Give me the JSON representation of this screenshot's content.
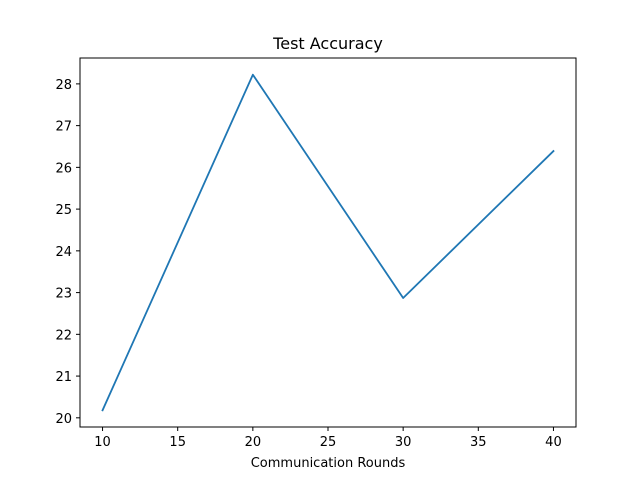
{
  "chart_data": {
    "type": "line",
    "title": "Test Accuracy",
    "xlabel": "Communication Rounds",
    "ylabel": "",
    "x": [
      10,
      20,
      30,
      40
    ],
    "series": [
      {
        "values": [
          20.18,
          28.22,
          22.87,
          26.39
        ],
        "color": "#1f77b4"
      }
    ],
    "xlim": [
      8.5,
      41.5
    ],
    "ylim": [
      19.78,
      28.62
    ],
    "xticks": [
      10,
      15,
      20,
      25,
      30,
      35,
      40
    ],
    "yticks": [
      20,
      21,
      22,
      23,
      24,
      25,
      26,
      27,
      28
    ],
    "grid": false,
    "legend": false
  }
}
